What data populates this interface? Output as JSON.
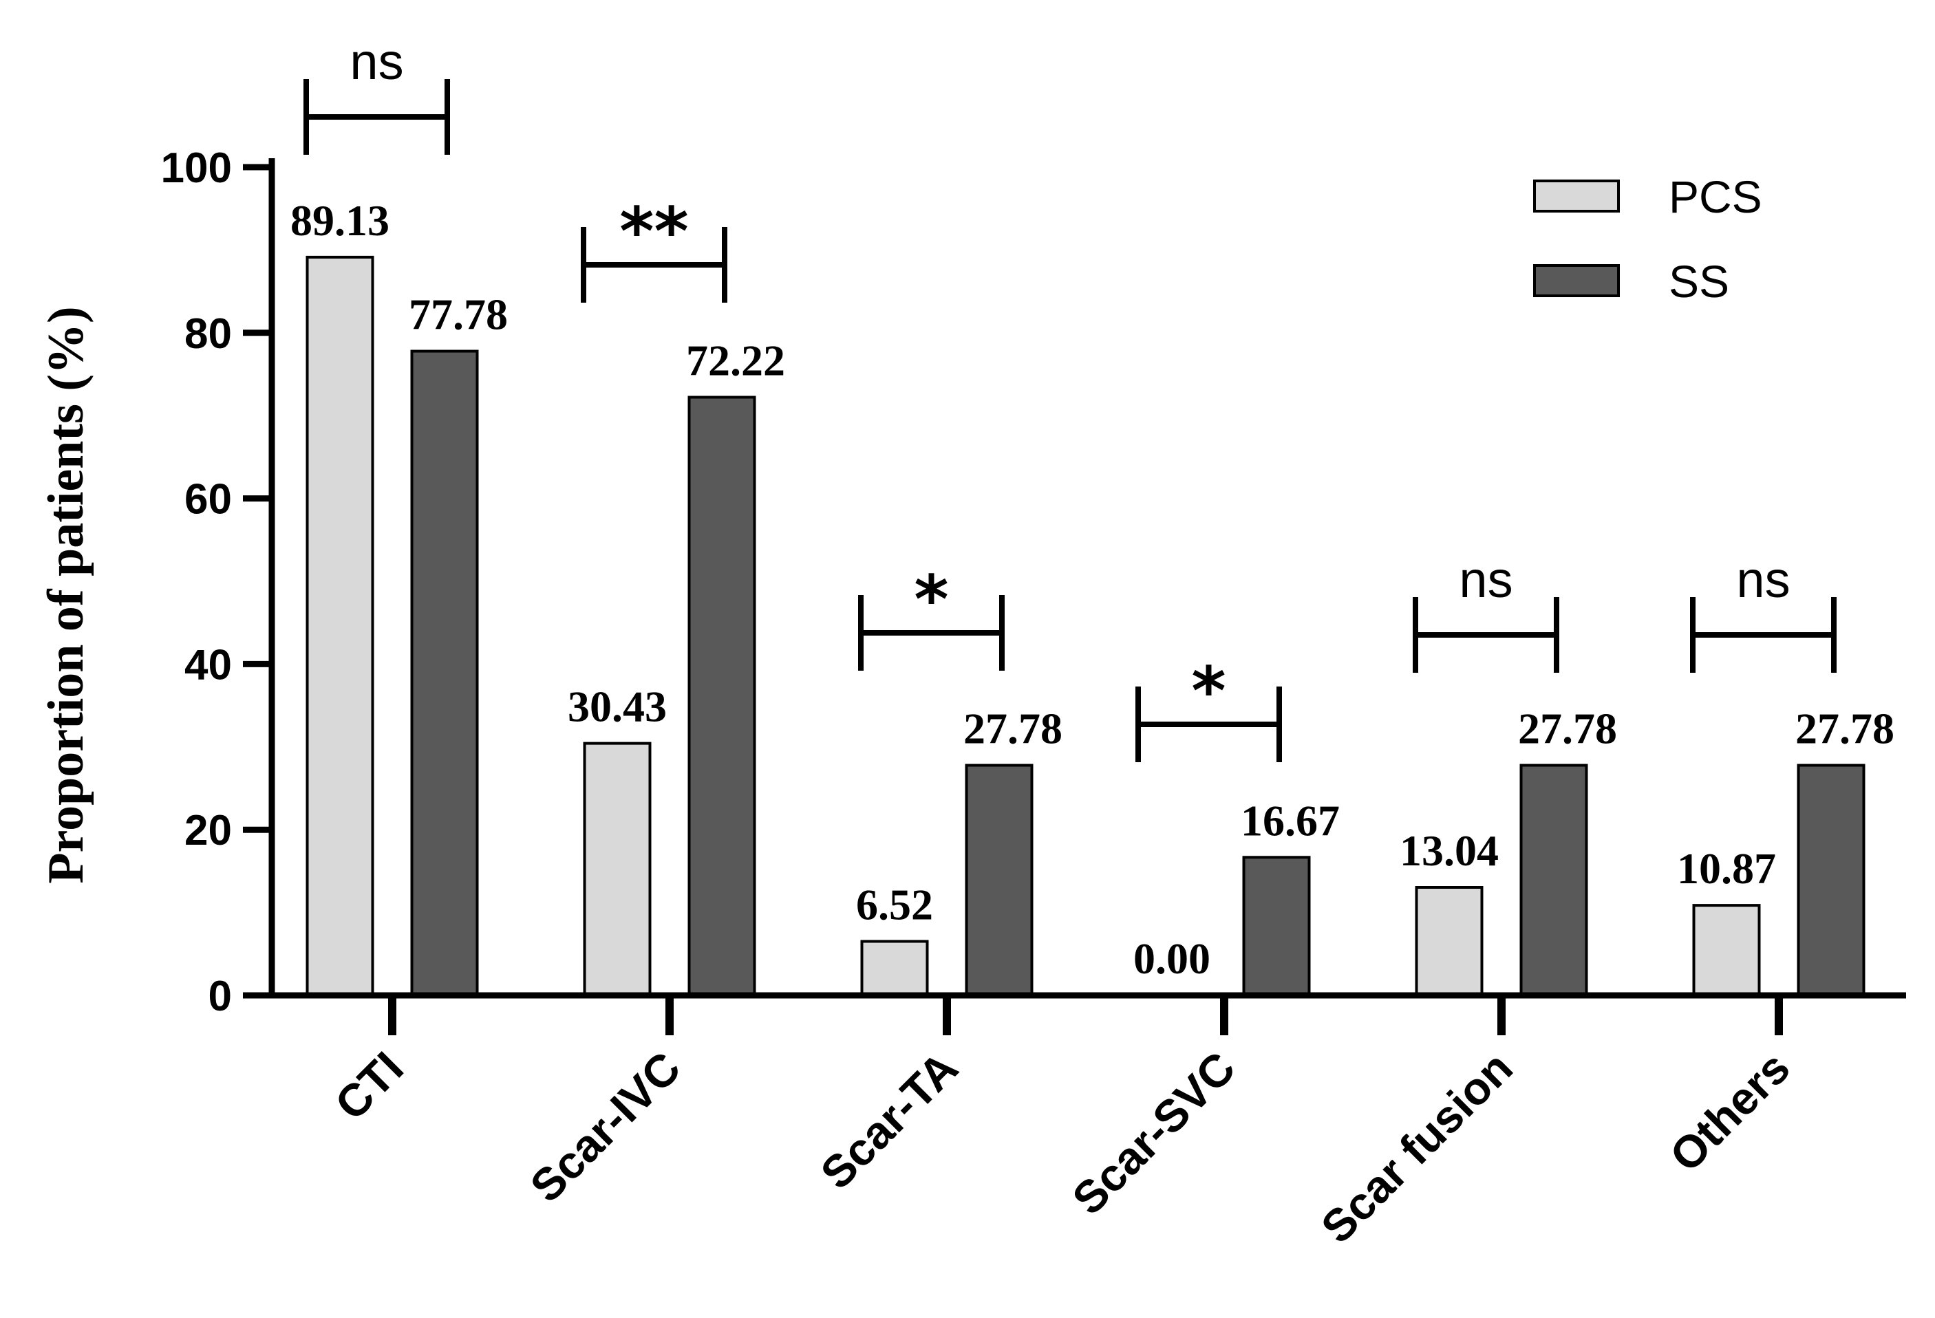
{
  "chart_data": {
    "type": "bar",
    "title": "",
    "xlabel": "",
    "ylabel": "Proportion of patients (%)",
    "ylim": [
      0,
      100
    ],
    "yticks": [
      0,
      20,
      40,
      60,
      80,
      100
    ],
    "categories": [
      "CTI",
      "Scar-IVC",
      "Scar-TA",
      "Scar-SVC",
      "Scar fusion",
      "Others"
    ],
    "series": [
      {
        "name": "PCS",
        "color": "#d9d9d9",
        "values": [
          89.13,
          30.43,
          6.52,
          0.0,
          13.04,
          10.87
        ],
        "labels": [
          "89.13",
          "30.43",
          "6.52",
          "0.00",
          "13.04",
          "10.87"
        ]
      },
      {
        "name": "SS",
        "color": "#595959",
        "values": [
          77.78,
          72.22,
          27.78,
          16.67,
          27.78,
          27.78
        ],
        "labels": [
          "77.78",
          "72.22",
          "27.78",
          "16.67",
          "27.78",
          "27.78"
        ]
      }
    ],
    "significance": [
      "ns",
      "**",
      "*",
      "*",
      "ns",
      "ns"
    ],
    "legend_position": "top-right"
  }
}
